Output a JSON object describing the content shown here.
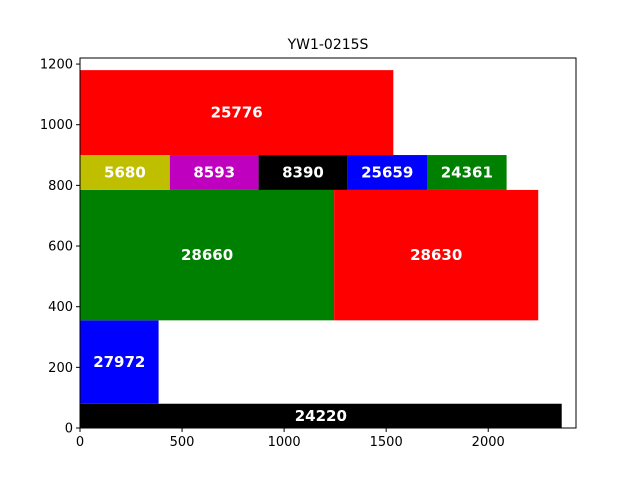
{
  "chart_data": {
    "type": "rectangle-packing",
    "title": "YW1-0215S",
    "xlabel": "",
    "ylabel": "",
    "xlim": [
      0,
      2430
    ],
    "ylim": [
      0,
      1220
    ],
    "xticks": [
      0,
      500,
      1000,
      1500,
      2000
    ],
    "yticks": [
      0,
      200,
      400,
      600,
      800,
      1000,
      1200
    ],
    "grid": false,
    "rectangles": [
      {
        "label": "24220",
        "x": 0,
        "y": 0,
        "width": 2360,
        "height": 80,
        "color": "#000000"
      },
      {
        "label": "27972",
        "x": 0,
        "y": 80,
        "width": 385,
        "height": 275,
        "color": "#0000ff"
      },
      {
        "label": "28660",
        "x": 0,
        "y": 355,
        "width": 1245,
        "height": 430,
        "color": "#008000"
      },
      {
        "label": "28630",
        "x": 1245,
        "y": 355,
        "width": 1000,
        "height": 430,
        "color": "#ff0000"
      },
      {
        "label": "5680",
        "x": 0,
        "y": 785,
        "width": 440,
        "height": 115,
        "color": "#bfbf00"
      },
      {
        "label": "8593",
        "x": 440,
        "y": 785,
        "width": 435,
        "height": 115,
        "color": "#bf00bf"
      },
      {
        "label": "8390",
        "x": 875,
        "y": 785,
        "width": 435,
        "height": 115,
        "color": "#000000"
      },
      {
        "label": "25659",
        "x": 1310,
        "y": 785,
        "width": 390,
        "height": 115,
        "color": "#0000ff"
      },
      {
        "label": "24361",
        "x": 1700,
        "y": 785,
        "width": 390,
        "height": 115,
        "color": "#008000"
      },
      {
        "label": "25776",
        "x": 0,
        "y": 900,
        "width": 1535,
        "height": 280,
        "color": "#ff0000"
      }
    ]
  }
}
